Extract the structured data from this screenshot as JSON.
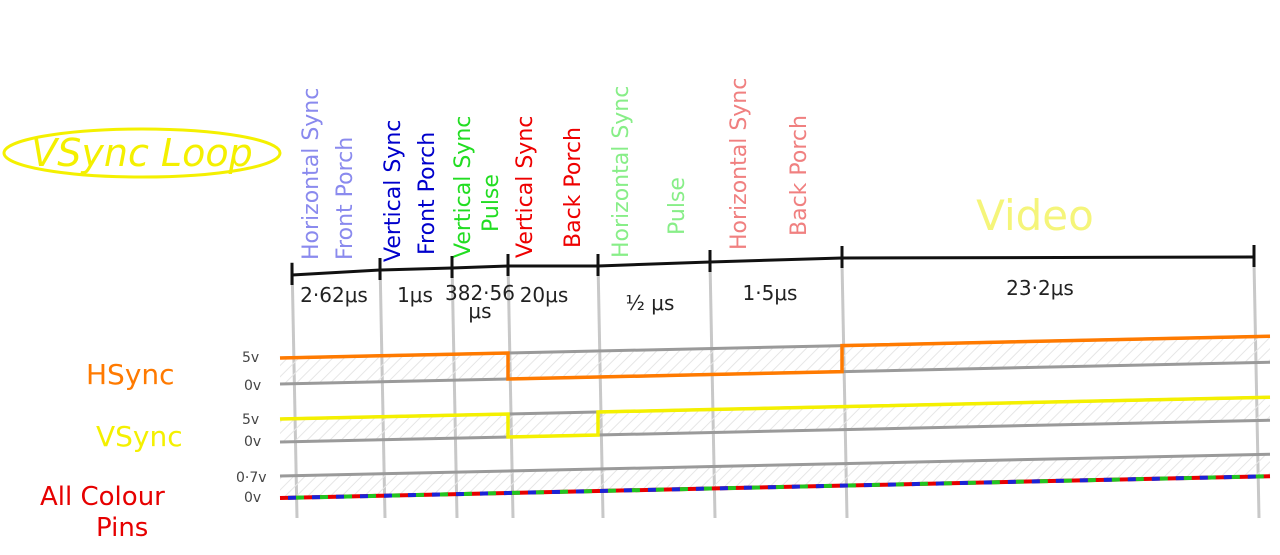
{
  "title": "VSync Loop",
  "colors": {
    "title": "#f4f000",
    "hsync": "#ff7a00",
    "vsync": "#f4f000",
    "pins_red": "#e60000",
    "pins_green": "#21c421",
    "pins_blue": "#1a24d6",
    "seg_hfp": "#8a8aee",
    "seg_vfp": "#0000cc",
    "seg_vsp": "#22dd22",
    "seg_vbp": "#ee0000",
    "seg_hsp": "#88ee88",
    "seg_hbp": "#f08080",
    "seg_video": "#f5f57a",
    "grid": "#9a9a9a"
  },
  "segments": [
    {
      "line1": "Horizontal Sync",
      "line2": "Front Porch",
      "duration": "2·62μs"
    },
    {
      "line1": "Vertical Sync",
      "line2": "Front Porch",
      "duration": "1μs"
    },
    {
      "line1": "Vertical Sync",
      "line2": "Pulse",
      "duration": "382·56",
      "duration2": "μs"
    },
    {
      "line1": "Vertical Sync",
      "line2": "Back Porch",
      "duration": "20μs"
    },
    {
      "line1": "Horizontal Sync",
      "line2": "Pulse",
      "duration": "½ μs"
    },
    {
      "line1": "Horizontal Sync",
      "line2": "Back Porch",
      "duration": "1·5μs"
    },
    {
      "line1": "Video",
      "line2": "",
      "duration": "23·2μs"
    }
  ],
  "signals": {
    "hsync": {
      "name": "HSync",
      "high": "5v",
      "low": "0v",
      "levels": [
        1,
        1,
        1,
        0,
        0,
        0,
        1,
        1
      ]
    },
    "vsync": {
      "name": "VSync",
      "high": "5v",
      "low": "0v",
      "levels": [
        1,
        1,
        1,
        0,
        1,
        1,
        1,
        1
      ]
    },
    "pins": {
      "name_line1": "All Colour",
      "name_line2": "Pins",
      "high": "0·7v",
      "low": "0v",
      "levels": [
        0,
        0,
        0,
        0,
        0,
        0,
        0,
        0
      ]
    }
  }
}
